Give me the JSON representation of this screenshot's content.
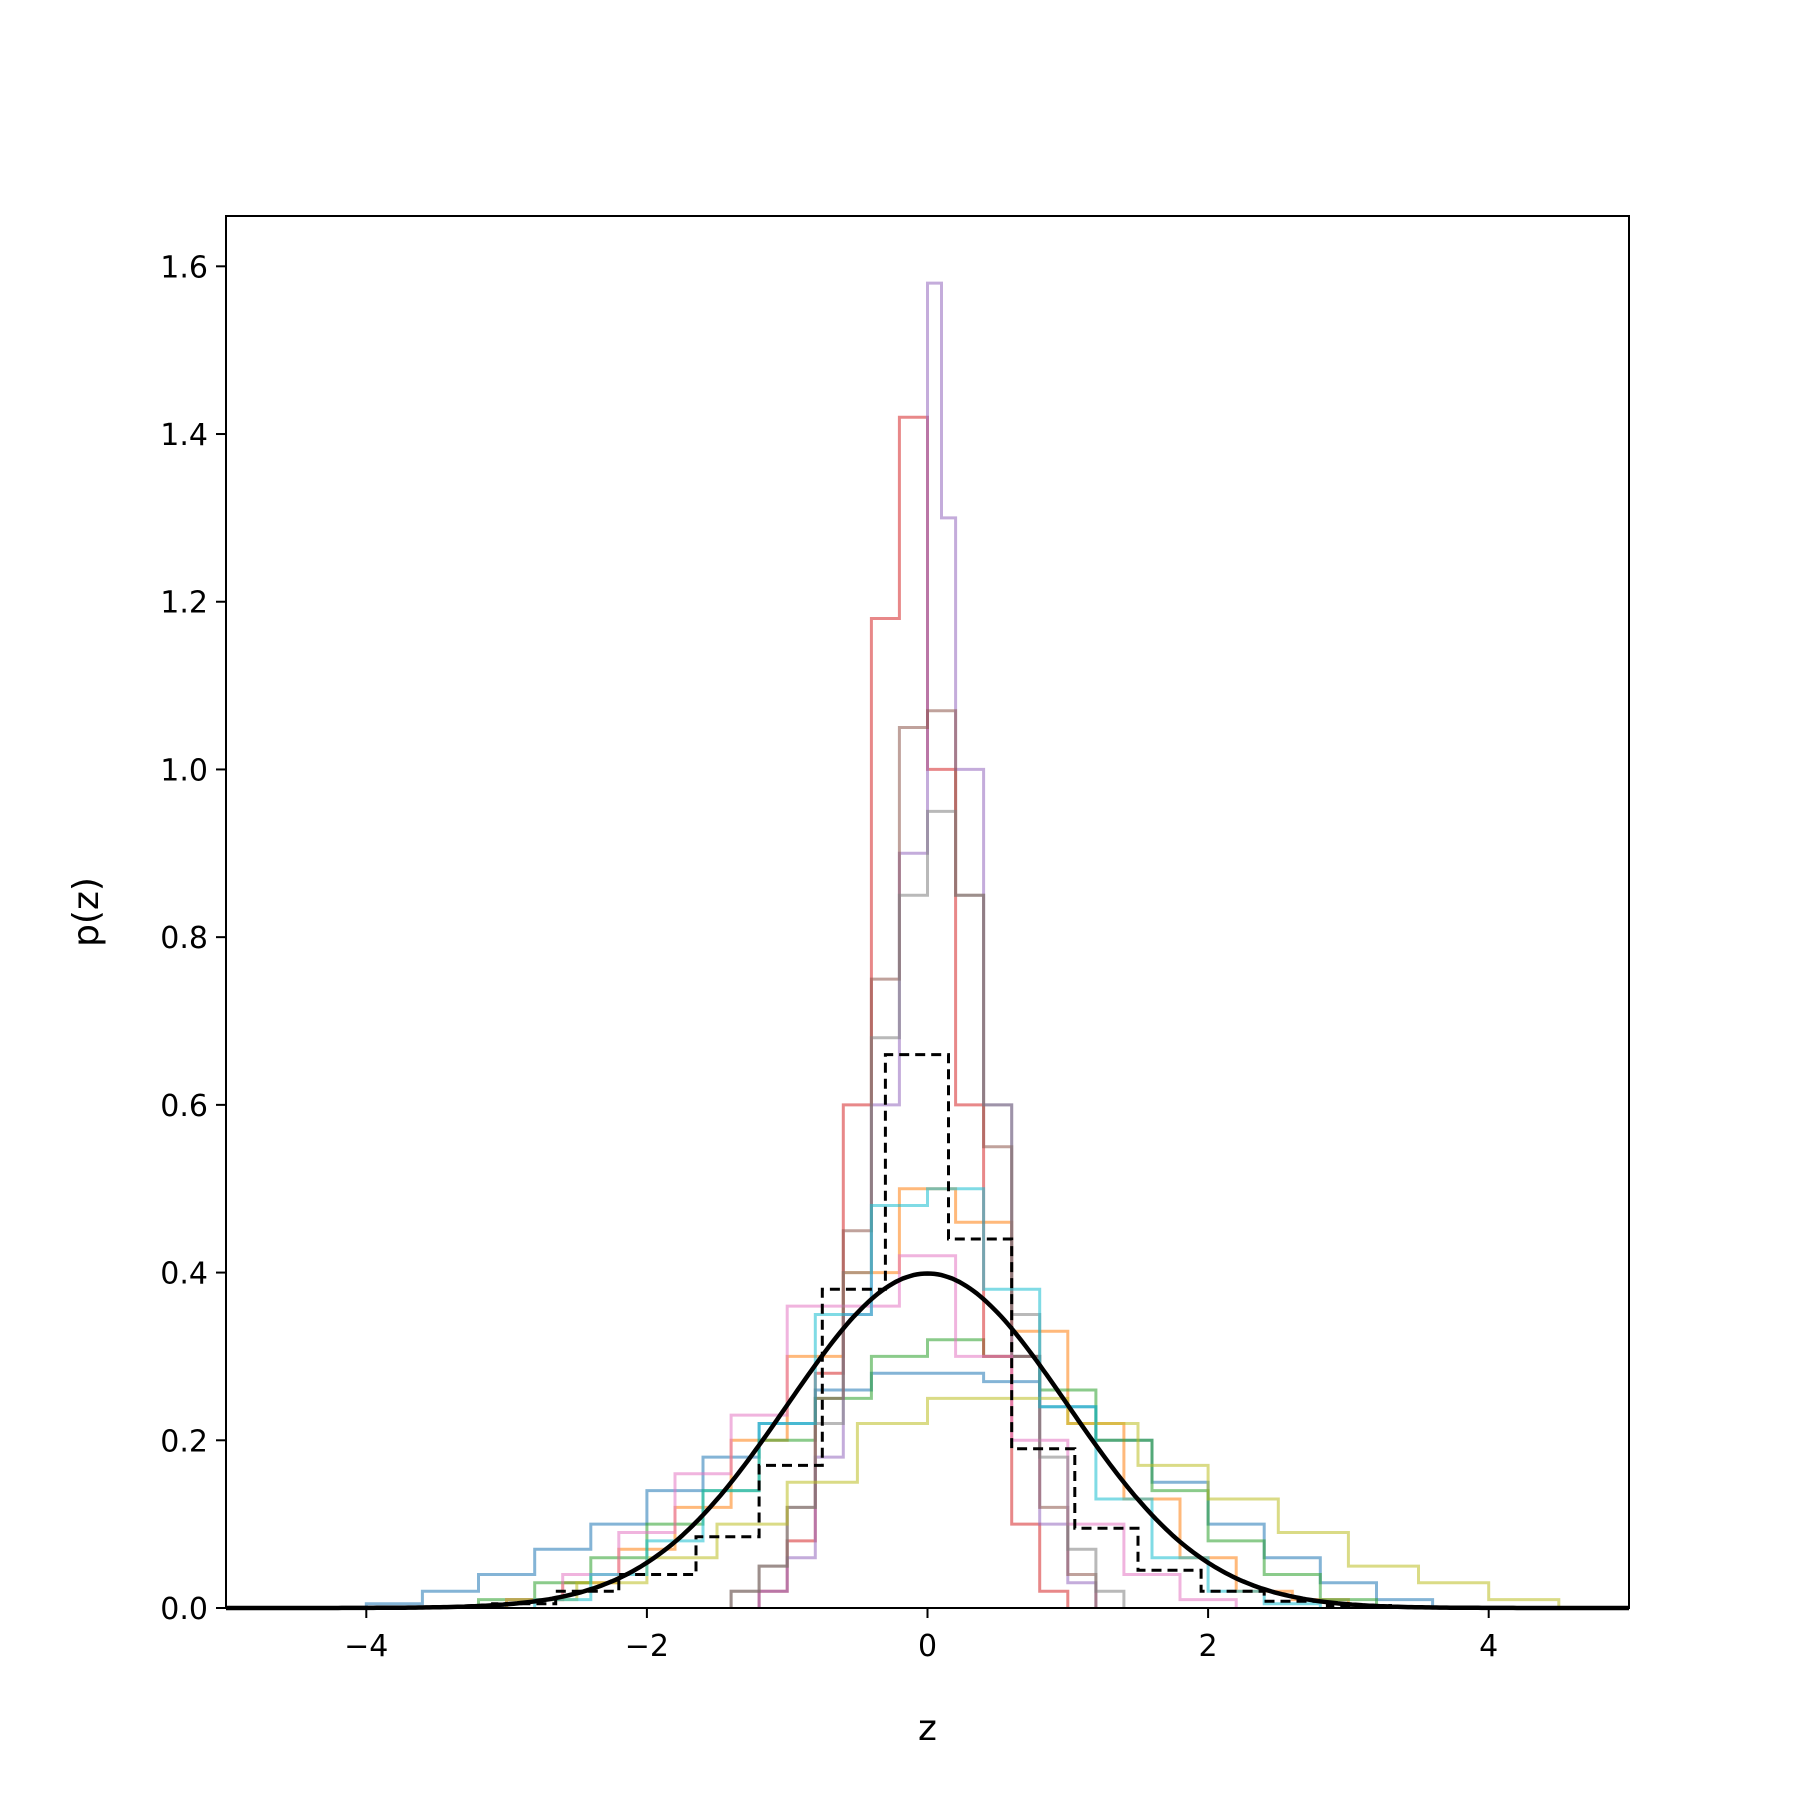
{
  "chart_data": {
    "type": "line",
    "title": "",
    "xlabel": "z",
    "ylabel": "p(z)",
    "xlim": [
      -5,
      5
    ],
    "ylim": [
      0,
      1.66
    ],
    "grid": false,
    "x_ticks": [
      -4,
      -2,
      0,
      2,
      4
    ],
    "x_tick_labels": [
      "−4",
      "−2",
      "0",
      "2",
      "4"
    ],
    "y_ticks": [
      0,
      0.2,
      0.4,
      0.6,
      0.8,
      1.0,
      1.2,
      1.4,
      1.6
    ],
    "y_tick_labels": [
      "0.0",
      "0.2",
      "0.4",
      "0.6",
      "0.8",
      "1.0",
      "1.2",
      "1.4",
      "1.6"
    ],
    "curve": {
      "kind": "normal_pdf",
      "mean": 0,
      "std": 1,
      "color": "#000000"
    },
    "reference_histogram": {
      "color": "#000000",
      "dashed": true,
      "edges": [
        -3.1,
        -2.65,
        -2.2,
        -1.65,
        -1.2,
        -0.75,
        -0.3,
        0.15,
        0.6,
        1.05,
        1.5,
        1.95,
        2.4,
        2.85,
        3.3
      ],
      "values": [
        0.005,
        0.02,
        0.04,
        0.085,
        0.17,
        0.38,
        0.66,
        0.44,
        0.19,
        0.095,
        0.045,
        0.02,
        0.008,
        0.003
      ]
    },
    "series": [
      {
        "color": "#1f77b4",
        "edges": [
          -4.0,
          -3.6,
          -3.2,
          -2.8,
          -2.4,
          -2.0,
          -1.6,
          -1.2,
          -0.8,
          -0.4,
          0.0,
          0.4,
          0.8,
          1.2,
          1.6,
          2.0,
          2.4,
          2.8,
          3.2,
          3.6
        ],
        "values": [
          0.005,
          0.02,
          0.04,
          0.07,
          0.1,
          0.14,
          0.18,
          0.22,
          0.26,
          0.28,
          0.28,
          0.27,
          0.24,
          0.2,
          0.15,
          0.1,
          0.06,
          0.03,
          0.01
        ]
      },
      {
        "color": "#ff7f0e",
        "edges": [
          -3.0,
          -2.6,
          -2.2,
          -1.8,
          -1.4,
          -1.0,
          -0.6,
          -0.2,
          0.2,
          0.6,
          1.0,
          1.4,
          1.8,
          2.2,
          2.6,
          3.0
        ],
        "values": [
          0.01,
          0.03,
          0.07,
          0.12,
          0.2,
          0.3,
          0.4,
          0.5,
          0.46,
          0.33,
          0.22,
          0.13,
          0.06,
          0.02,
          0.01
        ]
      },
      {
        "color": "#2ca02c",
        "edges": [
          -3.2,
          -2.8,
          -2.4,
          -2.0,
          -1.6,
          -1.2,
          -0.8,
          -0.4,
          0.0,
          0.4,
          0.8,
          1.2,
          1.6,
          2.0,
          2.4,
          2.8,
          3.2
        ],
        "values": [
          0.01,
          0.03,
          0.06,
          0.1,
          0.14,
          0.2,
          0.25,
          0.3,
          0.32,
          0.3,
          0.26,
          0.2,
          0.14,
          0.08,
          0.04,
          0.01
        ]
      },
      {
        "color": "#d62728",
        "edges": [
          -1.2,
          -1.0,
          -0.8,
          -0.6,
          -0.4,
          -0.2,
          0.0,
          0.2,
          0.4,
          0.6,
          0.8,
          1.0
        ],
        "values": [
          0.02,
          0.08,
          0.28,
          0.6,
          1.18,
          1.42,
          1.0,
          0.6,
          0.3,
          0.1,
          0.02
        ]
      },
      {
        "color": "#9467bd",
        "edges": [
          -1.2,
          -1.0,
          -0.8,
          -0.6,
          -0.4,
          -0.2,
          0.0,
          0.1,
          0.2,
          0.4,
          0.6,
          0.8,
          1.0,
          1.2
        ],
        "values": [
          0.02,
          0.06,
          0.18,
          0.35,
          0.6,
          0.9,
          1.58,
          1.3,
          1.0,
          0.6,
          0.3,
          0.1,
          0.03
        ]
      },
      {
        "color": "#8c564b",
        "edges": [
          -1.4,
          -1.2,
          -1.0,
          -0.8,
          -0.6,
          -0.4,
          -0.2,
          0.0,
          0.2,
          0.4,
          0.6,
          0.8,
          1.0,
          1.2
        ],
        "values": [
          0.02,
          0.05,
          0.12,
          0.25,
          0.45,
          0.75,
          1.05,
          1.07,
          0.85,
          0.55,
          0.3,
          0.12,
          0.04
        ]
      },
      {
        "color": "#e377c2",
        "edges": [
          -3.0,
          -2.6,
          -2.2,
          -1.8,
          -1.4,
          -1.0,
          -0.6,
          -0.2,
          0.2,
          0.6,
          1.0,
          1.4,
          1.8,
          2.2
        ],
        "values": [
          0.01,
          0.04,
          0.09,
          0.16,
          0.23,
          0.36,
          0.36,
          0.42,
          0.3,
          0.2,
          0.1,
          0.04,
          0.01
        ]
      },
      {
        "color": "#7f7f7f",
        "edges": [
          -1.4,
          -1.2,
          -1.0,
          -0.8,
          -0.6,
          -0.4,
          -0.2,
          0.0,
          0.2,
          0.4,
          0.6,
          0.8,
          1.0,
          1.2,
          1.4
        ],
        "values": [
          0.02,
          0.05,
          0.12,
          0.22,
          0.4,
          0.68,
          0.85,
          0.95,
          0.85,
          0.6,
          0.35,
          0.18,
          0.07,
          0.02
        ]
      },
      {
        "color": "#bcbd22",
        "edges": [
          -3.0,
          -2.5,
          -2.0,
          -1.5,
          -1.0,
          -0.5,
          0.0,
          0.5,
          1.0,
          1.5,
          2.0,
          2.5,
          3.0,
          3.5,
          4.0,
          4.5
        ],
        "values": [
          0.01,
          0.03,
          0.06,
          0.1,
          0.15,
          0.22,
          0.25,
          0.25,
          0.22,
          0.17,
          0.13,
          0.09,
          0.05,
          0.03,
          0.01
        ]
      },
      {
        "color": "#17becf",
        "edges": [
          -2.8,
          -2.4,
          -2.0,
          -1.6,
          -1.2,
          -0.8,
          -0.4,
          0.0,
          0.4,
          0.8,
          1.2,
          1.6,
          2.0,
          2.4,
          2.8
        ],
        "values": [
          0.01,
          0.04,
          0.08,
          0.14,
          0.22,
          0.35,
          0.48,
          0.5,
          0.38,
          0.24,
          0.13,
          0.06,
          0.02,
          0.005
        ]
      }
    ]
  }
}
